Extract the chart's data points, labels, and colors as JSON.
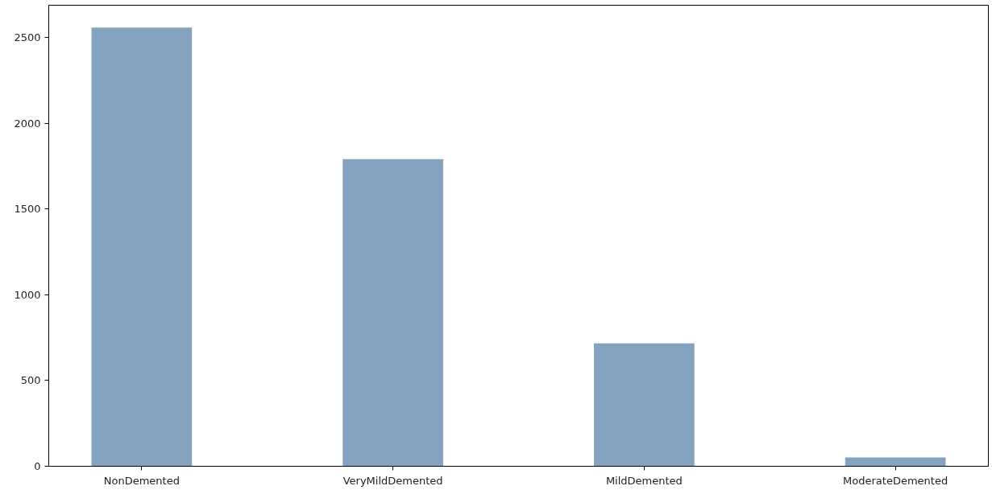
{
  "chart_data": {
    "type": "bar",
    "categories": [
      "NonDemented",
      "VeryMildDemented",
      "MildDemented",
      "ModerateDemented"
    ],
    "values": [
      2560,
      1792,
      717,
      52
    ],
    "color": "#84a3c0",
    "ylim": [
      0,
      2690
    ],
    "yticks": [
      0,
      500,
      1000,
      1500,
      2000,
      2500
    ],
    "grid": false
  }
}
